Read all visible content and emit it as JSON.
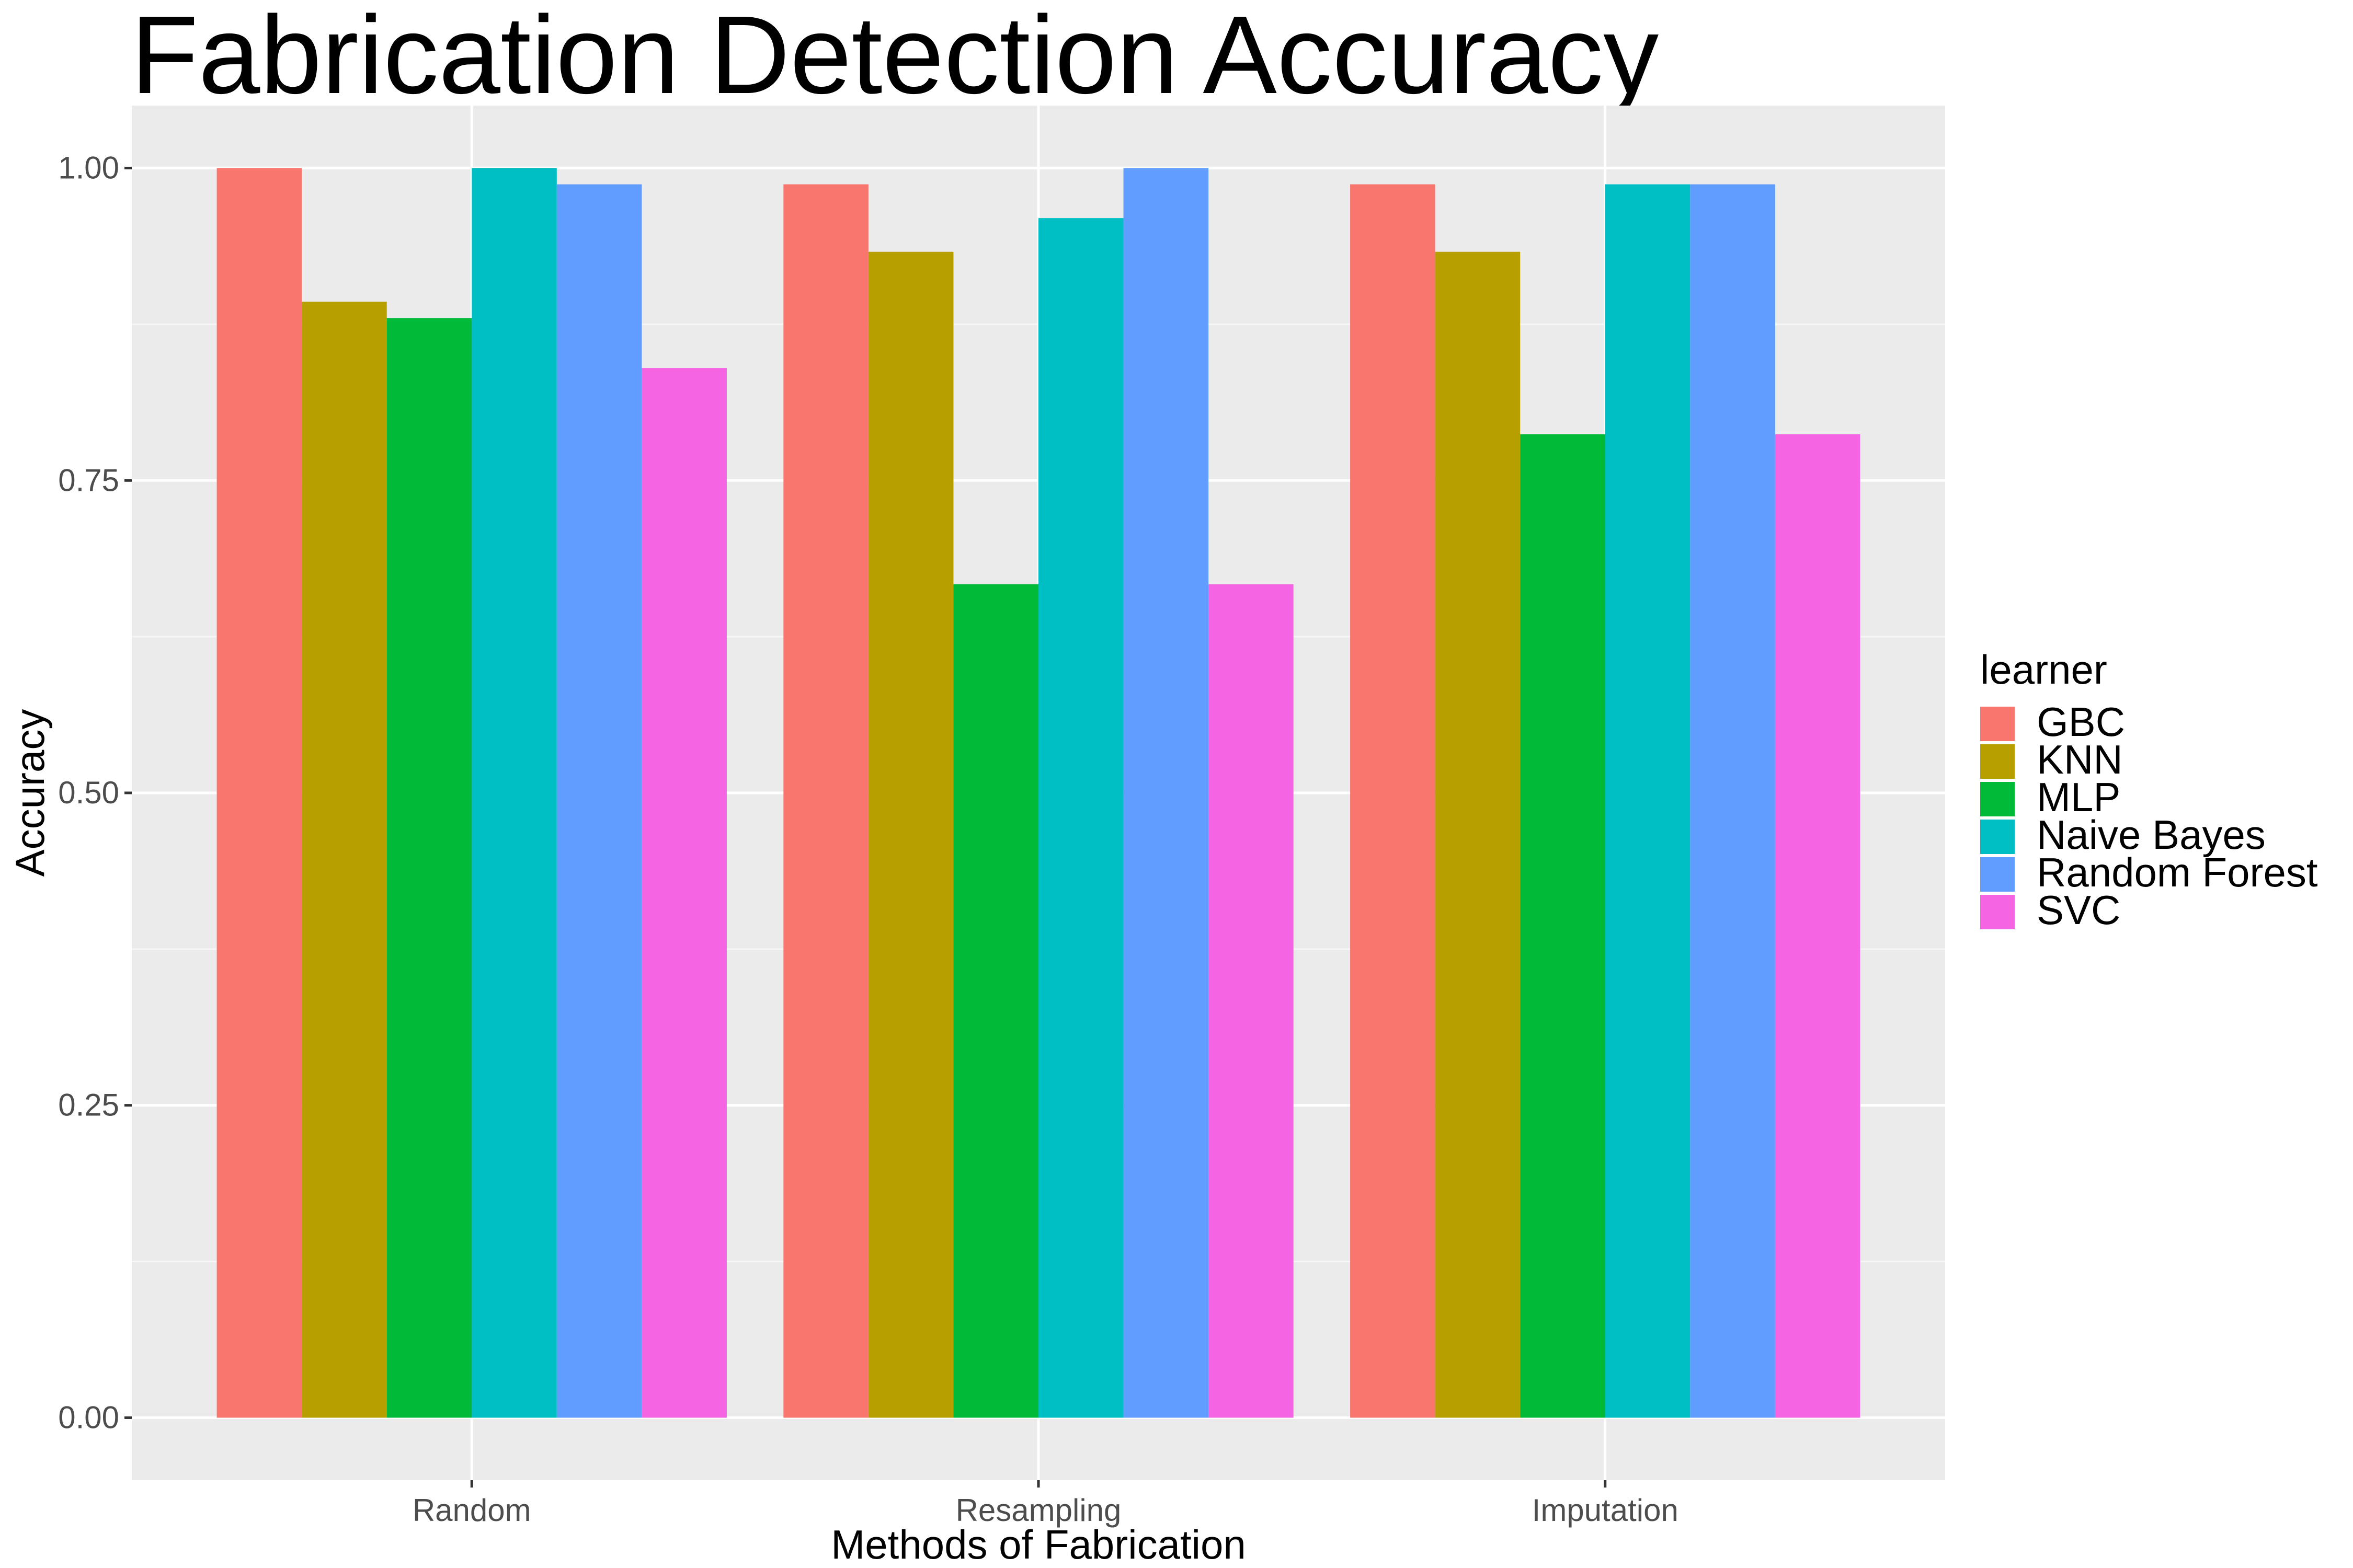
{
  "chart_data": {
    "type": "bar",
    "title": "Fabrication Detection Accuracy",
    "xlabel": "Methods of Fabrication",
    "ylabel": "Accuracy",
    "categories": [
      "Random",
      "Resampling",
      "Imputation"
    ],
    "ylim": [
      -0.05,
      1.05
    ],
    "yticks": [
      0.0,
      0.25,
      0.5,
      0.75,
      1.0
    ],
    "ytick_labels": [
      "0.00",
      "0.25",
      "0.50",
      "0.75",
      "1.00"
    ],
    "grid": true,
    "legend": {
      "title": "learner",
      "position": "right"
    },
    "series": [
      {
        "name": "GBC",
        "color": "#F8766D",
        "values": [
          1.0,
          0.987,
          0.987
        ]
      },
      {
        "name": "KNN",
        "color": "#B79F00",
        "values": [
          0.893,
          0.933,
          0.933
        ]
      },
      {
        "name": "MLP",
        "color": "#00BA38",
        "values": [
          0.88,
          0.667,
          0.787
        ]
      },
      {
        "name": "Naive Bayes",
        "color": "#00BFC4",
        "values": [
          1.0,
          0.96,
          0.987
        ]
      },
      {
        "name": "Random Forest",
        "color": "#619CFF",
        "values": [
          0.987,
          1.0,
          0.987
        ]
      },
      {
        "name": "SVC",
        "color": "#F564E3",
        "values": [
          0.84,
          0.667,
          0.787
        ]
      }
    ],
    "colors": {
      "panel_background": "#EBEBEB",
      "grid_major": "#FFFFFF",
      "axis_text": "#4D4D4D",
      "title_text": "#000000"
    }
  }
}
